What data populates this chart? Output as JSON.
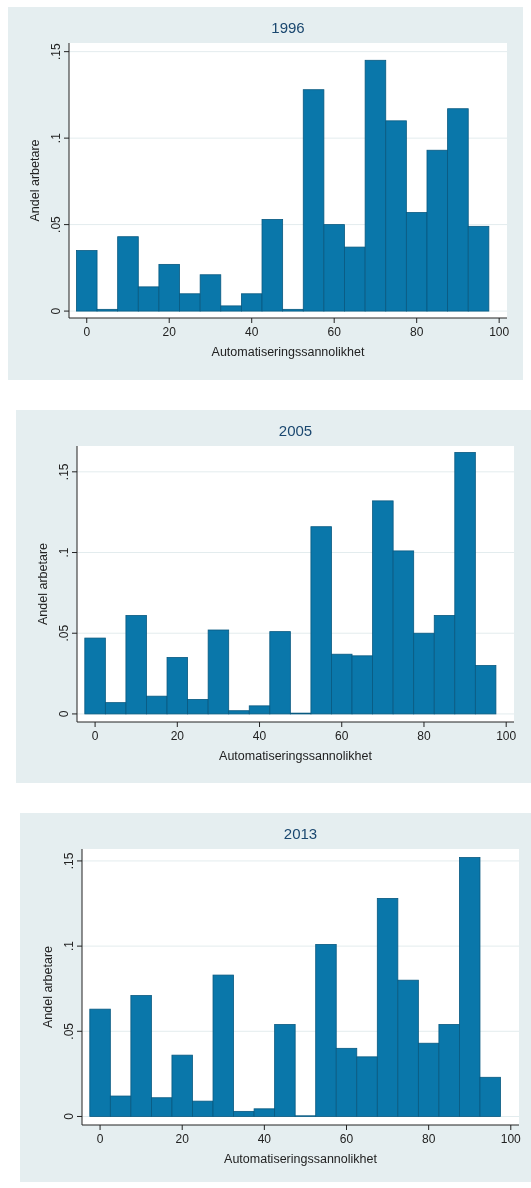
{
  "chart_data": [
    {
      "type": "histogram",
      "title": "1996",
      "xlabel": "Automatiseringssannolikhet",
      "ylabel": "Andel arbetare",
      "color": "#0a77aa",
      "bins": [
        -2.5,
        2.5,
        7.5,
        12.5,
        17.5,
        22.5,
        27.5,
        32.5,
        37.5,
        42.5,
        47.5,
        52.5,
        57.5,
        62.5,
        67.5,
        72.5,
        77.5,
        82.5,
        87.5,
        92.5,
        97.5
      ],
      "values": [
        0.035,
        0.001,
        0.043,
        0.014,
        0.027,
        0.01,
        0.021,
        0.003,
        0.01,
        0.053,
        0.001,
        0.128,
        0.05,
        0.037,
        0.145,
        0.11,
        0.057,
        0.093,
        0.117,
        0.049
      ],
      "xlim": [
        -4.3,
        101.9
      ],
      "ylim": [
        -0.004,
        0.155
      ],
      "xticks": [
        0,
        20,
        40,
        60,
        80,
        100
      ],
      "yticks": [
        {
          "value": 0,
          "label": "0"
        },
        {
          "value": 0.05,
          "label": ".05"
        },
        {
          "value": 0.1,
          "label": ".1"
        },
        {
          "value": 0.15,
          "label": ".15"
        }
      ],
      "grid": "y"
    },
    {
      "type": "histogram",
      "title": "2005",
      "xlabel": "Automatiseringssannolikhet",
      "ylabel": "Andel arbetare",
      "color": "#0a77aa",
      "bins": [
        -2.5,
        2.5,
        7.5,
        12.5,
        17.5,
        22.5,
        27.5,
        32.5,
        37.5,
        42.5,
        47.5,
        52.5,
        57.5,
        62.5,
        67.5,
        72.5,
        77.5,
        82.5,
        87.5,
        92.5,
        97.5
      ],
      "values": [
        0.047,
        0.007,
        0.061,
        0.011,
        0.035,
        0.009,
        0.052,
        0.002,
        0.005,
        0.051,
        0.0005,
        0.116,
        0.037,
        0.036,
        0.132,
        0.101,
        0.05,
        0.061,
        0.162,
        0.03
      ],
      "xlim": [
        -4.4,
        101.9
      ],
      "ylim": [
        -0.005,
        0.166
      ],
      "xticks": [
        0,
        20,
        40,
        60,
        80,
        100
      ],
      "yticks": [
        {
          "value": 0,
          "label": "0"
        },
        {
          "value": 0.05,
          "label": ".05"
        },
        {
          "value": 0.1,
          "label": ".1"
        },
        {
          "value": 0.15,
          "label": ".15"
        }
      ],
      "grid": "y"
    },
    {
      "type": "histogram",
      "title": "2013",
      "xlabel": "Automatiseringssannolikhet",
      "ylabel": "Andel arbetare",
      "color": "#0a77aa",
      "bins": [
        -2.5,
        2.5,
        7.5,
        12.5,
        17.5,
        22.5,
        27.5,
        32.5,
        37.5,
        42.5,
        47.5,
        52.5,
        57.5,
        62.5,
        67.5,
        72.5,
        77.5,
        82.5,
        87.5,
        92.5,
        97.5
      ],
      "values": [
        0.063,
        0.012,
        0.071,
        0.011,
        0.036,
        0.009,
        0.083,
        0.003,
        0.0045,
        0.054,
        0.0004,
        0.101,
        0.04,
        0.035,
        0.128,
        0.08,
        0.043,
        0.054,
        0.152,
        0.023
      ],
      "xlim": [
        -4.4,
        102
      ],
      "ylim": [
        -0.005,
        0.157
      ],
      "xticks": [
        0,
        20,
        40,
        60,
        80,
        100
      ],
      "yticks": [
        {
          "value": 0,
          "label": "0"
        },
        {
          "value": 0.05,
          "label": ".05"
        },
        {
          "value": 0.1,
          "label": ".1"
        },
        {
          "value": 0.15,
          "label": ".15"
        }
      ],
      "grid": "y"
    }
  ]
}
